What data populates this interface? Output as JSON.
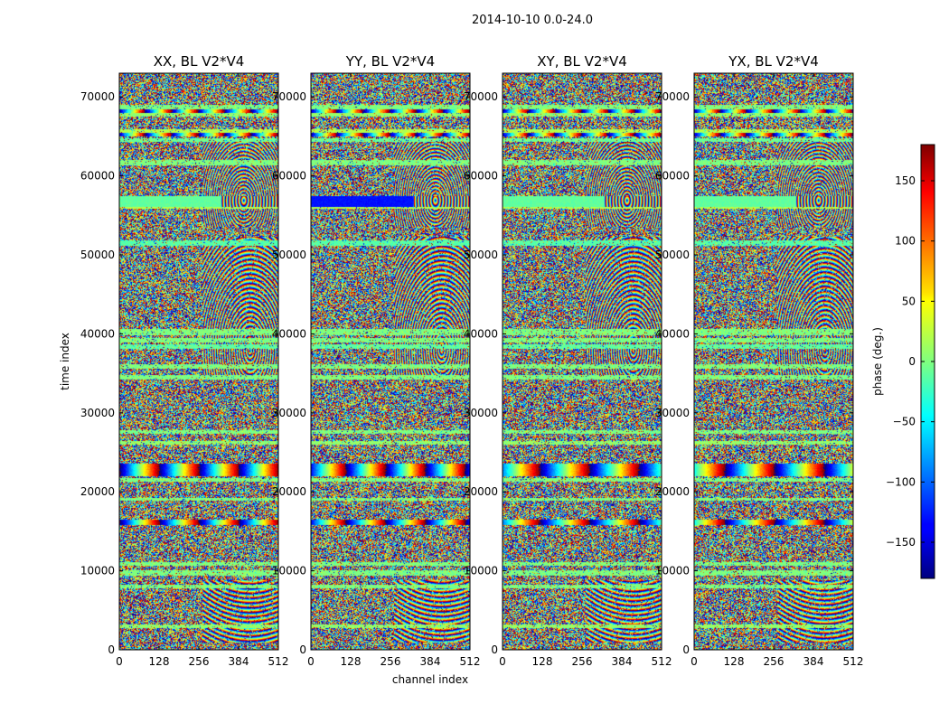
{
  "chart_data": {
    "type": "heatmap",
    "suptitle": "2014-10-10 0.0-24.0",
    "xlabel": "channel index",
    "ylabel": "time index",
    "xlim": [
      0,
      512
    ],
    "ylim": [
      0,
      73000
    ],
    "xticks": [
      0,
      128,
      256,
      384,
      512
    ],
    "yticks": [
      0,
      10000,
      20000,
      30000,
      40000,
      50000,
      60000,
      70000
    ],
    "panels": [
      {
        "title": "XX, BL V2*V4",
        "polarization": "XX"
      },
      {
        "title": "YY, BL V2*V4",
        "polarization": "YY"
      },
      {
        "title": "XY, BL V2*V4",
        "polarization": "XY"
      },
      {
        "title": "YX, BL V2*V4",
        "polarization": "YX"
      }
    ],
    "colorbar": {
      "label": "phase (deg.)",
      "range": [
        -180,
        180
      ],
      "ticks": [
        -150,
        -100,
        -50,
        0,
        50,
        100,
        150
      ],
      "tick_labels": [
        "−150",
        "−100",
        "−50",
        "0",
        "50",
        "100",
        "150"
      ],
      "colormap": "jet"
    }
  }
}
